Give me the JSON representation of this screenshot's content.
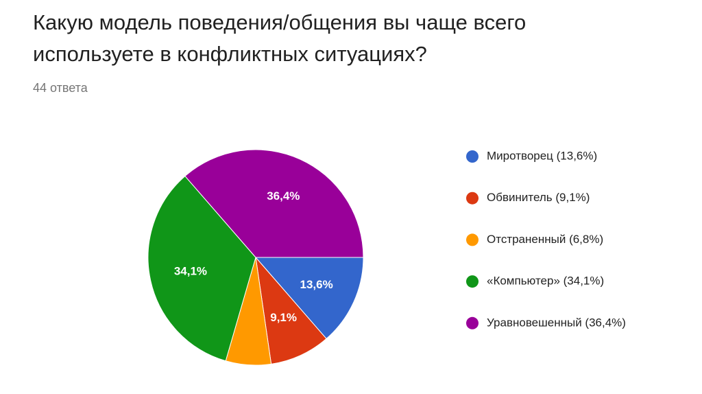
{
  "chart_data": {
    "type": "pie",
    "title": "Какую модель поведения/общения вы чаще всего используете в конфликтных ситуациях?",
    "subtitle": "44 ответа",
    "categories": [
      "Миротворец (13,6%)",
      "Обвинитель (9,1%)",
      "Отстраненный (6,8%)",
      "«Компьютер» (34,1%)",
      "Уравновешенный (36,4%)"
    ],
    "values": [
      13.6,
      9.1,
      6.8,
      34.1,
      36.4
    ],
    "value_labels": [
      "13,6%",
      "9,1%",
      null,
      "34,1%",
      "36,4%"
    ],
    "colors": [
      "#3366cc",
      "#dc3912",
      "#ff9900",
      "#109618",
      "#990099"
    ],
    "legend": "right"
  }
}
